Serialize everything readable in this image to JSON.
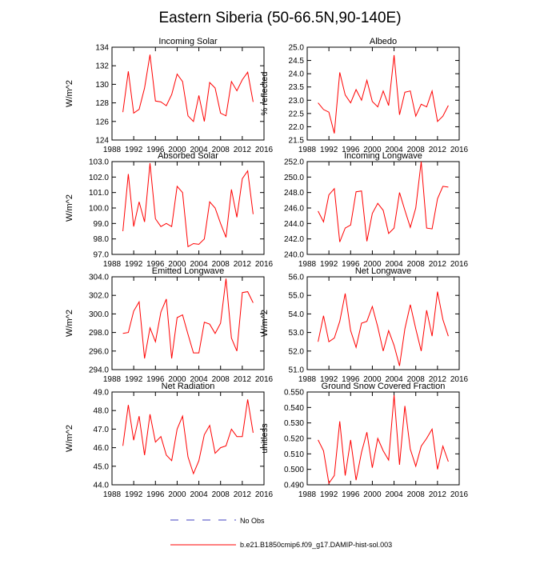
{
  "title": "Eastern Siberia (50-66.5N,90-140E)",
  "legend": {
    "items": [
      {
        "label": "No Obs",
        "color": "#4040c0",
        "style": "dashed"
      },
      {
        "label": "b.e21.B1850cmip6.f09_g17.DAMIP-hist-sol.003",
        "color": "#ff0000",
        "style": "solid"
      }
    ]
  },
  "chart_data": [
    {
      "type": "line",
      "title": "Incoming Solar",
      "ylabel": "W/m^2",
      "xlim": [
        1988,
        2016
      ],
      "ylim": [
        124,
        134
      ],
      "xticks": [
        "1988",
        "1992",
        "1996",
        "2000",
        "2004",
        "2008",
        "2012",
        "2016"
      ],
      "yticks": [
        "124",
        "126",
        "128",
        "130",
        "132",
        "134"
      ],
      "x": [
        1990,
        1991,
        1992,
        1993,
        1994,
        1995,
        1996,
        1997,
        1998,
        1999,
        2000,
        2001,
        2002,
        2003,
        2004,
        2005,
        2006,
        2007,
        2008,
        2009,
        2010,
        2011,
        2012,
        2013,
        2014
      ],
      "series": [
        {
          "color": "#ff0000",
          "values": [
            127.0,
            131.4,
            126.9,
            127.3,
            129.6,
            133.2,
            128.2,
            128.1,
            127.7,
            128.9,
            131.1,
            130.3,
            126.6,
            126.0,
            128.8,
            126.0,
            130.2,
            129.6,
            126.9,
            126.6,
            130.3,
            129.3,
            130.5,
            131.3,
            128.1
          ]
        }
      ]
    },
    {
      "type": "line",
      "title": "Albedo",
      "ylabel": "% reflected",
      "xlim": [
        1988,
        2016
      ],
      "ylim": [
        21.5,
        25.0
      ],
      "xticks": [
        "1988",
        "1992",
        "1996",
        "2000",
        "2004",
        "2008",
        "2012",
        "2016"
      ],
      "yticks": [
        "21.5",
        "22.0",
        "22.5",
        "23.0",
        "23.5",
        "24.0",
        "24.5",
        "25.0"
      ],
      "x": [
        1990,
        1991,
        1992,
        1993,
        1994,
        1995,
        1996,
        1997,
        1998,
        1999,
        2000,
        2001,
        2002,
        2003,
        2004,
        2005,
        2006,
        2007,
        2008,
        2009,
        2010,
        2011,
        2012,
        2013,
        2014
      ],
      "series": [
        {
          "color": "#ff0000",
          "values": [
            22.9,
            22.65,
            22.55,
            21.75,
            24.05,
            23.2,
            22.9,
            23.4,
            23.0,
            23.75,
            22.95,
            22.75,
            23.35,
            22.8,
            24.7,
            22.45,
            23.3,
            23.35,
            22.4,
            22.85,
            22.75,
            23.35,
            22.2,
            22.4,
            22.8
          ]
        }
      ]
    },
    {
      "type": "line",
      "title": "Absorbed Solar",
      "ylabel": "W/m^2",
      "xlim": [
        1988,
        2016
      ],
      "ylim": [
        97.0,
        103.0
      ],
      "xticks": [
        "1988",
        "1992",
        "1996",
        "2000",
        "2004",
        "2008",
        "2012",
        "2016"
      ],
      "yticks": [
        "97.0",
        "98.0",
        "99.0",
        "100.0",
        "101.0",
        "102.0",
        "103.0"
      ],
      "x": [
        1990,
        1991,
        1992,
        1993,
        1994,
        1995,
        1996,
        1997,
        1998,
        1999,
        2000,
        2001,
        2002,
        2003,
        2004,
        2005,
        2006,
        2007,
        2008,
        2009,
        2010,
        2011,
        2012,
        2013,
        2014
      ],
      "series": [
        {
          "color": "#ff0000",
          "values": [
            98.5,
            102.2,
            98.8,
            100.4,
            99.1,
            102.9,
            99.3,
            98.8,
            99.0,
            98.8,
            101.4,
            101.0,
            97.5,
            97.7,
            97.65,
            98.0,
            100.4,
            100.0,
            99.0,
            98.1,
            101.2,
            99.4,
            101.9,
            102.4,
            99.6
          ]
        }
      ]
    },
    {
      "type": "line",
      "title": "Incoming Longwave",
      "ylabel": "",
      "xlim": [
        1988,
        2016
      ],
      "ylim": [
        240.0,
        252.0
      ],
      "xticks": [
        "1988",
        "1992",
        "1996",
        "2000",
        "2004",
        "2008",
        "2012",
        "2016"
      ],
      "yticks": [
        "240.0",
        "242.0",
        "244.0",
        "246.0",
        "248.0",
        "250.0",
        "252.0"
      ],
      "x": [
        1990,
        1991,
        1992,
        1993,
        1994,
        1995,
        1996,
        1997,
        1998,
        1999,
        2000,
        2001,
        2002,
        2003,
        2004,
        2005,
        2006,
        2007,
        2008,
        2009,
        2010,
        2011,
        2012,
        2013,
        2014
      ],
      "series": [
        {
          "color": "#ff0000",
          "values": [
            245.6,
            244.2,
            247.7,
            248.5,
            241.6,
            243.4,
            243.8,
            248.1,
            248.2,
            241.7,
            245.3,
            246.6,
            245.7,
            242.7,
            243.4,
            248.0,
            245.7,
            243.5,
            246.0,
            252.0,
            243.4,
            243.3,
            247.2,
            248.8,
            248.7
          ]
        }
      ]
    },
    {
      "type": "line",
      "title": "Emitted Longwave",
      "ylabel": "W/m^2",
      "xlim": [
        1988,
        2016
      ],
      "ylim": [
        294.0,
        304.0
      ],
      "xticks": [
        "1988",
        "1992",
        "1996",
        "2000",
        "2004",
        "2008",
        "2012",
        "2016"
      ],
      "yticks": [
        "294.0",
        "296.0",
        "298.0",
        "300.0",
        "302.0",
        "304.0"
      ],
      "x": [
        1990,
        1991,
        1992,
        1993,
        1994,
        1995,
        1996,
        1997,
        1998,
        1999,
        2000,
        2001,
        2002,
        2003,
        2004,
        2005,
        2006,
        2007,
        2008,
        2009,
        2010,
        2011,
        2012,
        2013,
        2014
      ],
      "series": [
        {
          "color": "#ff0000",
          "values": [
            297.9,
            298.0,
            300.3,
            301.3,
            295.2,
            298.5,
            297.0,
            300.2,
            301.6,
            295.2,
            299.6,
            299.9,
            297.8,
            295.8,
            295.8,
            299.1,
            298.9,
            297.9,
            299.0,
            303.8,
            297.4,
            296.0,
            302.3,
            302.4,
            301.2
          ]
        }
      ]
    },
    {
      "type": "line",
      "title": "Net Longwave",
      "ylabel": "W/m^2",
      "xlim": [
        1988,
        2016
      ],
      "ylim": [
        51.0,
        56.0
      ],
      "xticks": [
        "1988",
        "1992",
        "1996",
        "2000",
        "2004",
        "2008",
        "2012",
        "2016"
      ],
      "yticks": [
        "51.0",
        "52.0",
        "53.0",
        "54.0",
        "55.0",
        "56.0"
      ],
      "x": [
        1990,
        1991,
        1992,
        1993,
        1994,
        1995,
        1996,
        1997,
        1998,
        1999,
        2000,
        2001,
        2002,
        2003,
        2004,
        2005,
        2006,
        2007,
        2008,
        2009,
        2010,
        2011,
        2012,
        2013,
        2014
      ],
      "series": [
        {
          "color": "#ff0000",
          "values": [
            52.5,
            53.9,
            52.5,
            52.7,
            53.6,
            55.1,
            53.1,
            52.2,
            53.5,
            53.6,
            54.4,
            53.3,
            52.0,
            53.1,
            52.3,
            51.2,
            53.2,
            54.5,
            53.2,
            52.0,
            54.2,
            52.8,
            55.2,
            53.7,
            52.8
          ]
        }
      ]
    },
    {
      "type": "line",
      "title": "Net Radiation",
      "ylabel": "W/m^2",
      "xlim": [
        1988,
        2016
      ],
      "ylim": [
        44.0,
        49.0
      ],
      "xticks": [
        "1988",
        "1992",
        "1996",
        "2000",
        "2004",
        "2008",
        "2012",
        "2016"
      ],
      "yticks": [
        "44.0",
        "45.0",
        "46.0",
        "47.0",
        "48.0",
        "49.0"
      ],
      "x": [
        1990,
        1991,
        1992,
        1993,
        1994,
        1995,
        1996,
        1997,
        1998,
        1999,
        2000,
        2001,
        2002,
        2003,
        2004,
        2005,
        2006,
        2007,
        2008,
        2009,
        2010,
        2011,
        2012,
        2013,
        2014
      ],
      "series": [
        {
          "color": "#ff0000",
          "values": [
            46.1,
            48.3,
            46.4,
            47.7,
            45.6,
            47.8,
            46.3,
            46.6,
            45.6,
            45.3,
            47.0,
            47.7,
            45.5,
            44.6,
            45.3,
            46.7,
            47.2,
            45.7,
            46.0,
            46.1,
            47.0,
            46.6,
            46.6,
            48.6,
            46.8
          ]
        }
      ]
    },
    {
      "type": "line",
      "title": "Ground Snow Covered Fraction",
      "ylabel": "unitless",
      "xlim": [
        1988,
        2016
      ],
      "ylim": [
        0.49,
        0.55
      ],
      "xticks": [
        "1988",
        "1992",
        "1996",
        "2000",
        "2004",
        "2008",
        "2012",
        "2016"
      ],
      "yticks": [
        "0.490",
        "0.500",
        "0.510",
        "0.520",
        "0.530",
        "0.540",
        "0.550"
      ],
      "x": [
        1990,
        1991,
        1992,
        1993,
        1994,
        1995,
        1996,
        1997,
        1998,
        1999,
        2000,
        2001,
        2002,
        2003,
        2004,
        2005,
        2006,
        2007,
        2008,
        2009,
        2010,
        2011,
        2012,
        2013,
        2014
      ],
      "series": [
        {
          "color": "#ff0000",
          "values": [
            0.519,
            0.512,
            0.491,
            0.496,
            0.531,
            0.496,
            0.519,
            0.493,
            0.511,
            0.524,
            0.501,
            0.52,
            0.512,
            0.506,
            0.548,
            0.503,
            0.541,
            0.513,
            0.502,
            0.515,
            0.52,
            0.526,
            0.5,
            0.515,
            0.505
          ]
        }
      ]
    }
  ]
}
